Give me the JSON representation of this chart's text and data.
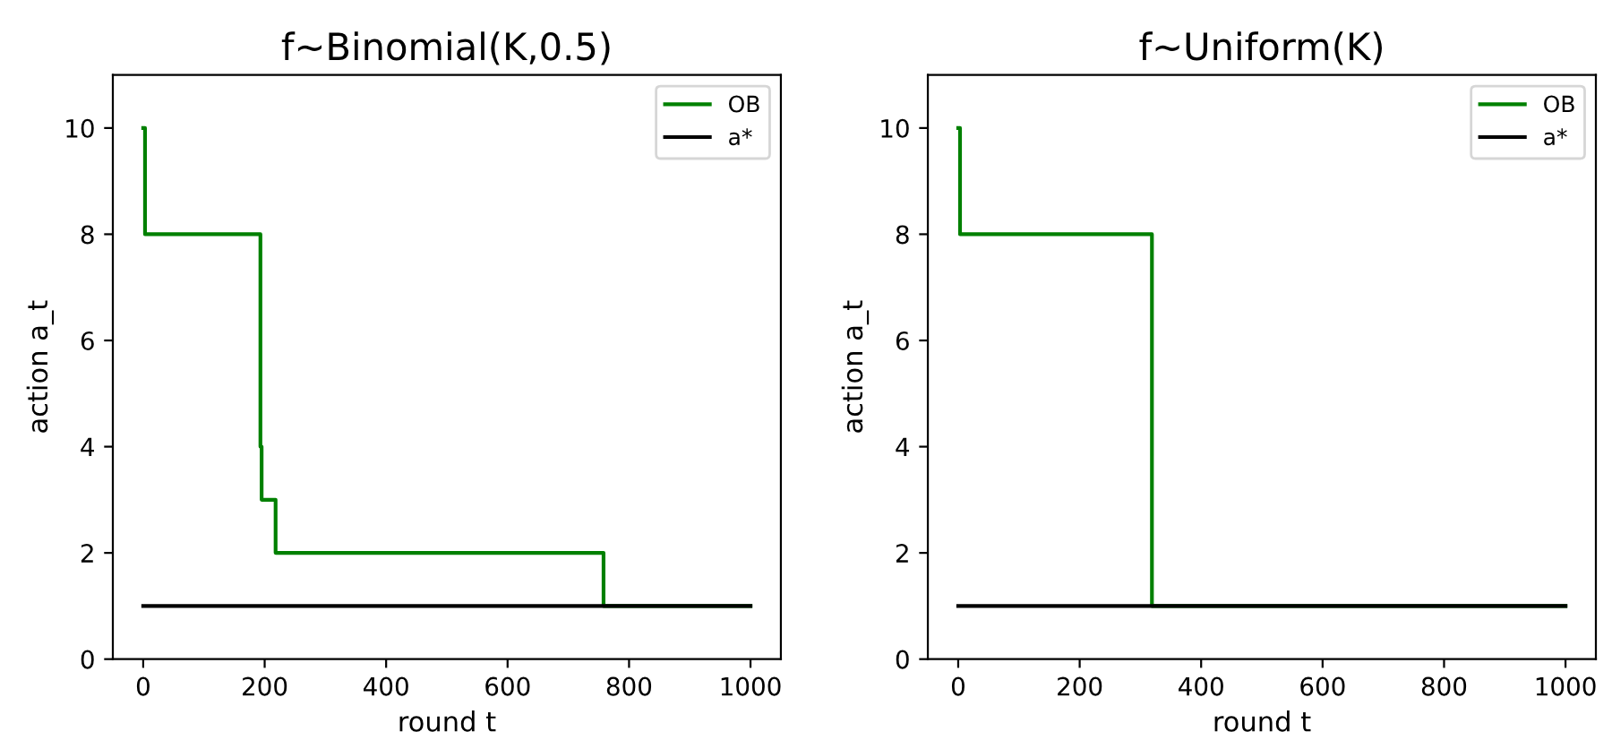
{
  "chart_data": [
    {
      "type": "step",
      "title": "f~Binomial(K,0.5)",
      "xlabel": "round t",
      "ylabel": "action a_t",
      "xlim": [
        -50,
        1050
      ],
      "ylim": [
        0,
        11
      ],
      "xticks": [
        0,
        200,
        400,
        600,
        800,
        1000
      ],
      "yticks": [
        0,
        2,
        4,
        6,
        8,
        10
      ],
      "legend": "top right",
      "grid": false,
      "series": [
        {
          "name": "OB",
          "color": "#008000",
          "x": [
            0,
            3,
            193,
            195,
            218,
            758,
            1000
          ],
          "values": [
            10,
            8,
            4,
            3,
            2,
            1,
            1
          ]
        },
        {
          "name": "a*",
          "color": "#000000",
          "type": "line",
          "x": [
            0,
            1000
          ],
          "values": [
            1,
            1
          ]
        }
      ]
    },
    {
      "type": "step",
      "title": "f~Uniform(K)",
      "xlabel": "round t",
      "ylabel": "action a_t",
      "xlim": [
        -50,
        1050
      ],
      "ylim": [
        0,
        11
      ],
      "xticks": [
        0,
        200,
        400,
        600,
        800,
        1000
      ],
      "yticks": [
        0,
        2,
        4,
        6,
        8,
        10
      ],
      "legend": "top right",
      "grid": false,
      "series": [
        {
          "name": "OB",
          "color": "#008000",
          "x": [
            0,
            3,
            319,
            1000
          ],
          "values": [
            10,
            8,
            1,
            1
          ]
        },
        {
          "name": "a*",
          "color": "#000000",
          "type": "line",
          "x": [
            0,
            1000
          ],
          "values": [
            1,
            1
          ]
        }
      ]
    }
  ]
}
